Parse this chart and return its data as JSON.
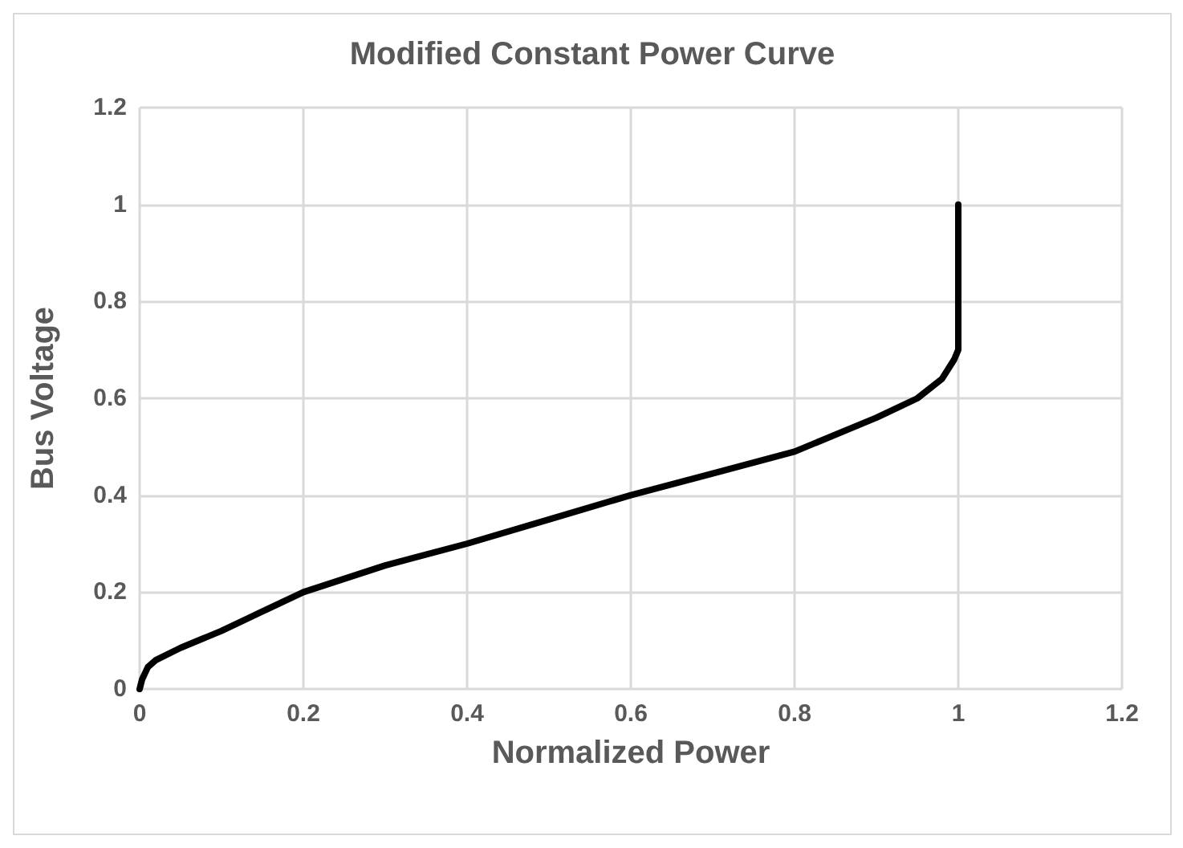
{
  "chart_data": {
    "type": "line",
    "title": "Modified Constant Power Curve",
    "xlabel": "Normalized Power",
    "ylabel": "Bus Voltage",
    "series": [
      {
        "color": "#000000",
        "x": [
          0,
          0.003,
          0.01,
          0.02,
          0.05,
          0.1,
          0.15,
          0.2,
          0.3,
          0.4,
          0.5,
          0.6,
          0.7,
          0.8,
          0.9,
          0.95,
          0.98,
          0.995,
          1,
          1
        ],
        "values": [
          0,
          0.02,
          0.045,
          0.06,
          0.085,
          0.12,
          0.16,
          0.2,
          0.255,
          0.3,
          0.35,
          0.4,
          0.445,
          0.49,
          0.56,
          0.6,
          0.64,
          0.68,
          0.7,
          1
        ]
      }
    ],
    "xlim": [
      0,
      1.2
    ],
    "xticks": [
      0,
      0.2,
      0.4,
      0.6,
      0.8,
      1,
      1.2
    ],
    "ylim": [
      0,
      1.2
    ],
    "yticks": [
      0,
      0.2,
      0.4,
      0.6,
      0.8,
      1,
      1.2
    ],
    "grid": true,
    "marker": "none",
    "line_style": "solid"
  }
}
